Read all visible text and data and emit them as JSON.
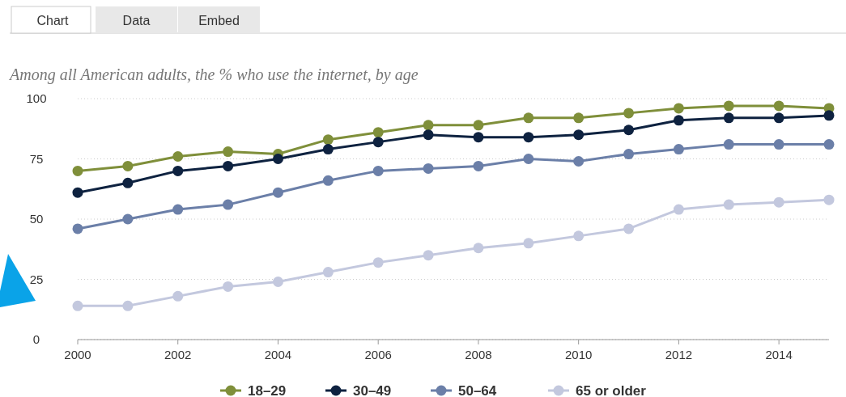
{
  "chart_data": {
    "type": "line",
    "title": "Among all American adults, the % who use the internet, by age",
    "annotations": [
      "Chart",
      "Data",
      "Embed"
    ],
    "x": [
      2000,
      2001,
      2002,
      2003,
      2004,
      2005,
      2006,
      2007,
      2008,
      2009,
      2010,
      2011,
      2012,
      2013,
      2014,
      2015
    ],
    "series": [
      {
        "name": "18–29",
        "color": "#7f8f3a",
        "values": [
          70,
          72,
          76,
          78,
          77,
          83,
          86,
          89,
          89,
          92,
          92,
          94,
          96,
          97,
          97,
          96
        ]
      },
      {
        "name": "30–49",
        "color": "#0e2240",
        "values": [
          61,
          65,
          70,
          72,
          75,
          79,
          82,
          85,
          84,
          84,
          85,
          87,
          91,
          92,
          92,
          93
        ]
      },
      {
        "name": "50–64",
        "color": "#6b7fa8",
        "values": [
          46,
          50,
          54,
          56,
          61,
          66,
          70,
          71,
          72,
          75,
          74,
          77,
          79,
          81,
          81,
          81
        ]
      },
      {
        "name": "65 or older",
        "color": "#c3c8de",
        "values": [
          14,
          14,
          18,
          22,
          24,
          28,
          32,
          35,
          38,
          40,
          43,
          46,
          54,
          56,
          57,
          58
        ]
      }
    ],
    "xlim": [
      2000,
      2015
    ],
    "xticks": [
      2000,
      2002,
      2004,
      2006,
      2008,
      2010,
      2012,
      2014
    ],
    "ylim": [
      0,
      100
    ],
    "yticks": [
      0,
      25,
      50,
      75,
      100
    ],
    "grid": "y",
    "legend": "bottom",
    "marker": "circle",
    "line_style": "solid"
  }
}
